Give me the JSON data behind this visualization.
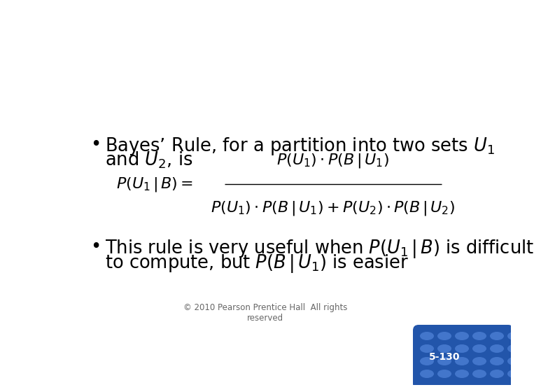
{
  "background_color": "#ffffff",
  "text_color": "#000000",
  "footer_color": "#666666",
  "badge_text": "5-130",
  "badge_bg_color": "#2255aa",
  "badge_dot_color": "#4477cc",
  "badge_text_color": "#ffffff",
  "bullet_fontsize": 18.5,
  "formula_fontsize": 16,
  "footer_fontsize": 8.5,
  "badge_fontsize": 10,
  "footer_text": "© 2010 Pearson Prentice Hall  All rights\nreserved",
  "bullet1_line1": "Bayes’ Rule, for a partition into two sets $U_1$",
  "bullet1_line2": "and $U_2$, is",
  "bullet2_line1": "This rule is very useful when $P(U_1\\,|\\,B)$ is difficult",
  "bullet2_line2": "to compute, but $P(B\\,|\\,U_1)$ is easier"
}
